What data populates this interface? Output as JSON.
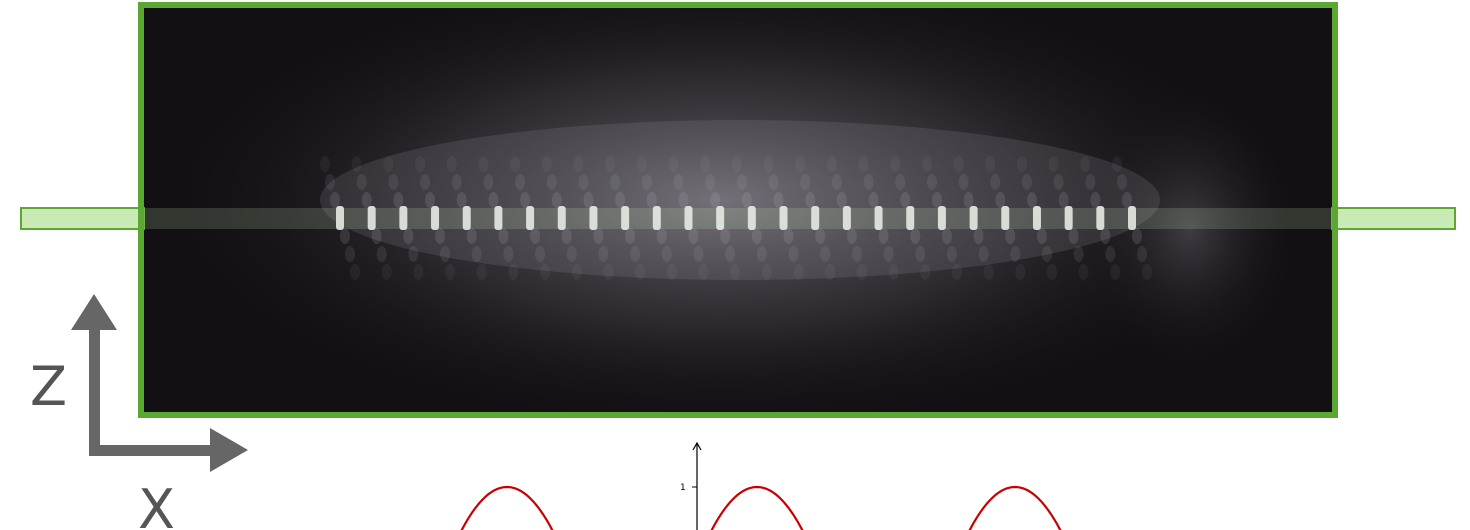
{
  "axes_indicator": {
    "vertical_label": "Z",
    "horizontal_label": "X",
    "color": "#666666"
  },
  "image_panel": {
    "frame_color": "#5aa832",
    "background_color": "#121013",
    "fringe_color": "#e8e8e8",
    "fringe_count": 26
  },
  "slice_band": {
    "fill_color": "#c9eab5",
    "border_color": "#5aa832"
  },
  "profile_plot": {
    "tick_label": "1",
    "curve_color": "#c80000",
    "axis_color": "#000000"
  }
}
